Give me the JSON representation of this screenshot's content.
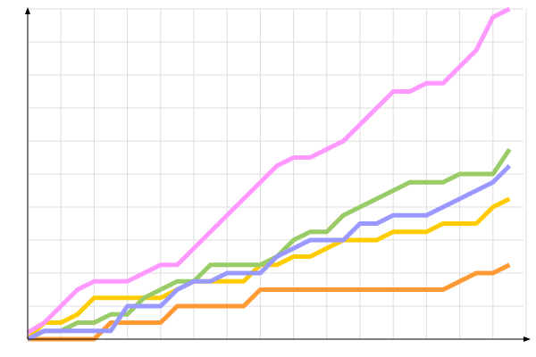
{
  "chart_data": {
    "type": "line",
    "title": "",
    "xlabel": "",
    "ylabel": "",
    "grid": true,
    "xlim": [
      0,
      30
    ],
    "ylim": [
      0,
      10
    ],
    "x": [
      0,
      1,
      2,
      3,
      4,
      5,
      6,
      7,
      8,
      9,
      10,
      11,
      12,
      13,
      14,
      15,
      16,
      17,
      18,
      19,
      20,
      21,
      22,
      23,
      24,
      25,
      26,
      27,
      28,
      29
    ],
    "series": [
      {
        "color": "#ff9933",
        "values": [
          0,
          0,
          0,
          0,
          0,
          0.5,
          0.5,
          0.5,
          0.5,
          1,
          1,
          1,
          1,
          1,
          1.5,
          1.5,
          1.5,
          1.5,
          1.5,
          1.5,
          1.5,
          1.5,
          1.5,
          1.5,
          1.5,
          1.5,
          1.75,
          2,
          2,
          2.25
        ]
      },
      {
        "color": "#ffcc00",
        "values": [
          0,
          0.5,
          0.5,
          0.75,
          1.25,
          1.25,
          1.25,
          1.25,
          1.25,
          1.5,
          1.75,
          1.75,
          1.75,
          1.75,
          2.25,
          2.25,
          2.5,
          2.5,
          2.75,
          3,
          3,
          3,
          3.25,
          3.25,
          3.25,
          3.5,
          3.5,
          3.5,
          4,
          4.25
        ]
      },
      {
        "color": "#99cc66",
        "values": [
          0,
          0.25,
          0.25,
          0.5,
          0.5,
          0.75,
          0.75,
          1.25,
          1.5,
          1.75,
          1.75,
          2.25,
          2.25,
          2.25,
          2.25,
          2.5,
          3,
          3.25,
          3.25,
          3.75,
          4,
          4.25,
          4.5,
          4.75,
          4.75,
          4.75,
          5,
          5,
          5,
          5.75
        ]
      },
      {
        "color": "#9999ff",
        "values": [
          0,
          0.25,
          0.25,
          0.25,
          0.25,
          0.25,
          1,
          1,
          1,
          1.5,
          1.75,
          1.75,
          2,
          2,
          2,
          2.5,
          2.75,
          3,
          3,
          3,
          3.5,
          3.5,
          3.75,
          3.75,
          3.75,
          4,
          4.25,
          4.5,
          4.75,
          5.25
        ]
      },
      {
        "color": "#ff99ff",
        "values": [
          0.2,
          0.5,
          1,
          1.5,
          1.75,
          1.75,
          1.75,
          2,
          2.25,
          2.25,
          2.75,
          3.25,
          3.75,
          4.25,
          4.75,
          5.25,
          5.5,
          5.5,
          5.75,
          6,
          6.5,
          7,
          7.5,
          7.5,
          7.75,
          7.75,
          8.25,
          8.75,
          9.75,
          10
        ]
      }
    ]
  }
}
